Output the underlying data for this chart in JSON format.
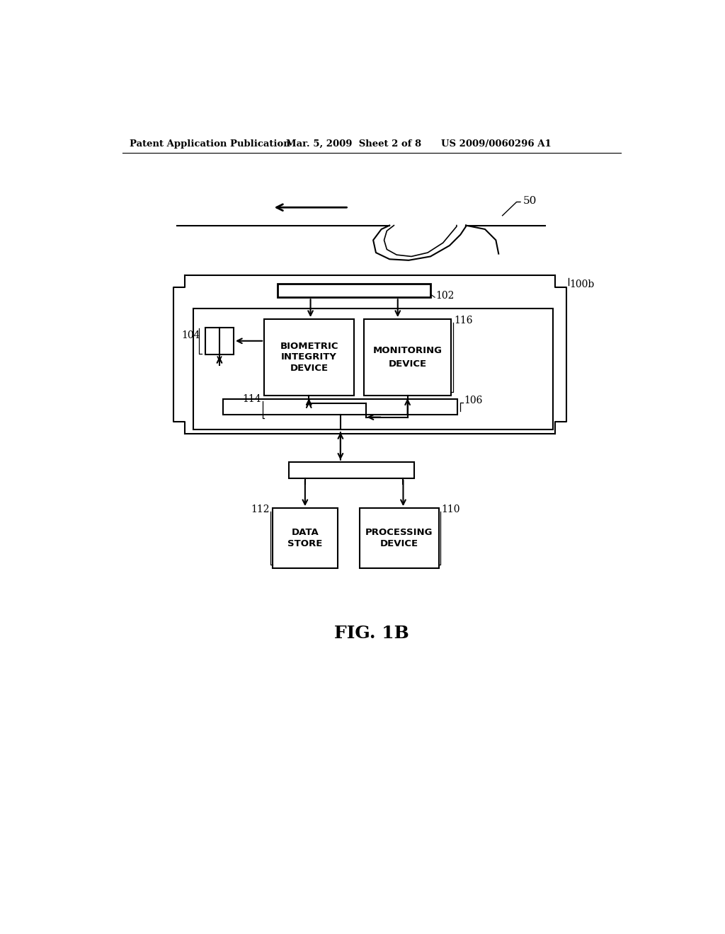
{
  "background_color": "#ffffff",
  "header_left": "Patent Application Publication",
  "header_mid": "Mar. 5, 2009  Sheet 2 of 8",
  "header_right": "US 2009/0060296 A1",
  "figure_label": "FIG. 1B",
  "label_50": "50",
  "label_100b": "100b",
  "label_102": "102",
  "label_104": "104",
  "label_106": "106",
  "label_110": "110",
  "label_112": "112",
  "label_114": "114",
  "label_116": "116",
  "box_biometric": [
    "BIOMETRIC",
    "INTEGRITY",
    "DEVICE"
  ],
  "box_monitoring": [
    "MONITORING",
    "DEVICE"
  ],
  "box_data_store": [
    "DATA",
    "STORE"
  ],
  "box_processing": [
    "PROCESSING",
    "DEVICE"
  ]
}
